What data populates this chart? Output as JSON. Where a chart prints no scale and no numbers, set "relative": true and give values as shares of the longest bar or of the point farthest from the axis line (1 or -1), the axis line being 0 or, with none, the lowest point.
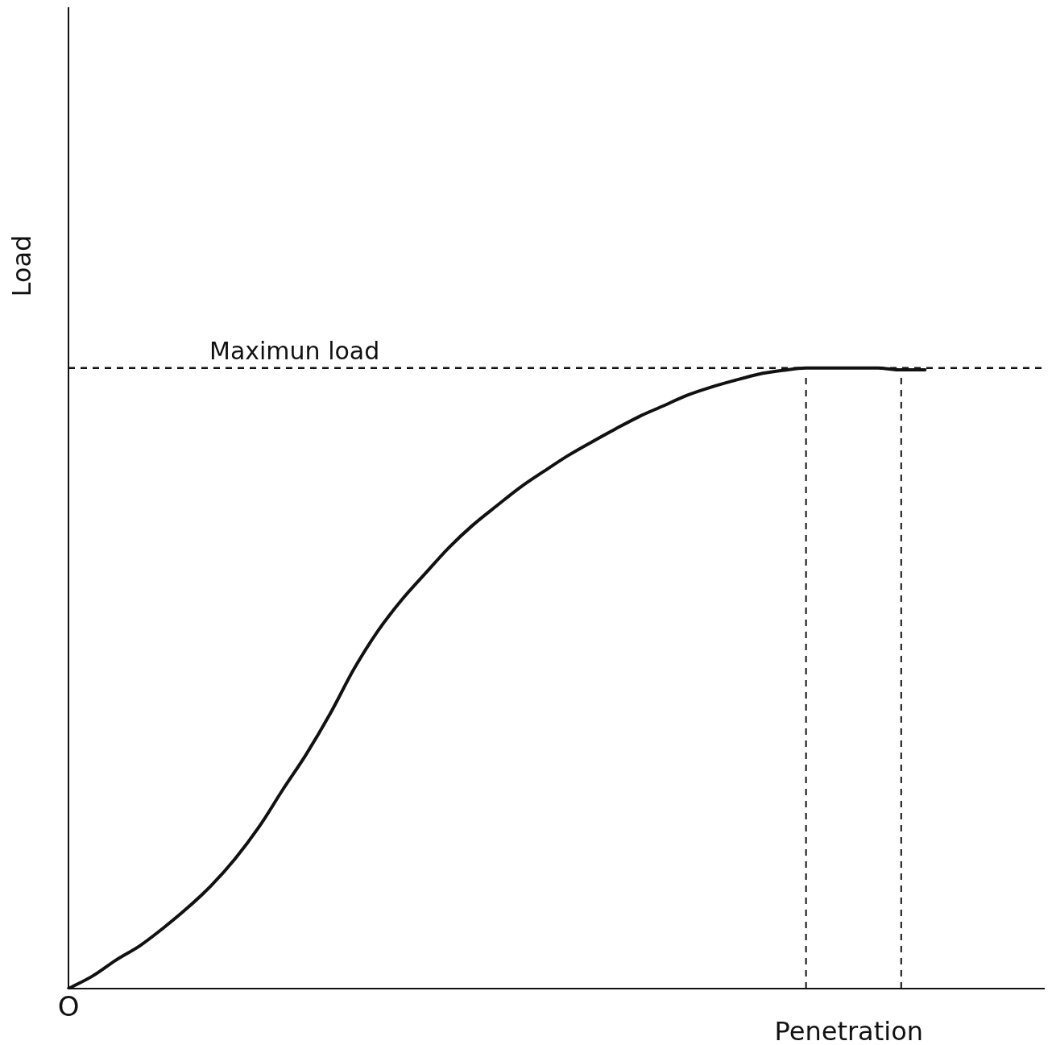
{
  "chart_data": {
    "type": "line",
    "relative": true,
    "xlabel": "Penetration",
    "ylabel": "Load",
    "annotations": [
      "O"
    ],
    "categories": [
      null,
      null,
      null,
      null,
      null,
      null,
      null,
      null,
      null,
      null,
      null,
      null,
      null,
      null,
      null,
      null,
      null,
      null,
      null,
      null,
      null,
      null,
      null,
      null,
      null,
      null,
      null,
      null,
      null,
      null,
      null,
      null,
      null,
      null,
      null,
      null,
      null,
      null,
      null,
      null,
      null,
      null
    ],
    "series": [
      {
        "color": "#111111",
        "values": [
          0,
          0.02,
          0.046,
          0.069,
          0.098,
          0.13,
          0.166,
          0.209,
          0.26,
          0.32,
          0.378,
          0.443,
          0.515,
          0.576,
          0.626,
          0.669,
          0.711,
          0.747,
          0.778,
          0.808,
          0.834,
          0.859,
          0.881,
          0.902,
          0.922,
          0.939,
          0.956,
          0.969,
          0.98,
          0.99,
          0.996,
          1.0,
          1.0,
          1.0,
          1.0,
          0.997,
          0.997,
          null,
          null,
          null,
          null,
          null
        ]
      }
    ],
    "ref_lines": [
      {
        "axis": "y",
        "value": 1.0,
        "label": "Maximun load",
        "line_style": "dashed",
        "color": "#111111"
      }
    ],
    "marker": "none",
    "line_style": "solid",
    "grid": false,
    "legend": false
  }
}
